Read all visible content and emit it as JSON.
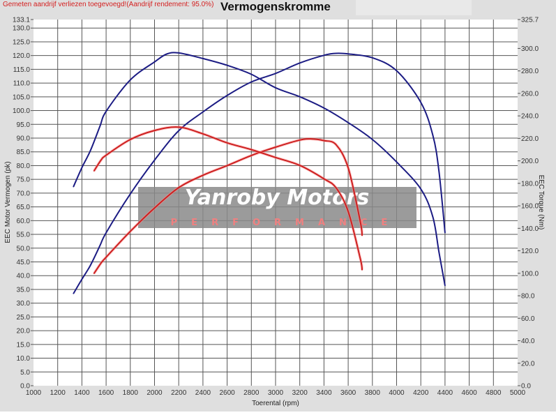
{
  "note": "Gemeten aandrijf verliezen toegevoegd!(Aandrijf rendement: 95.0%)",
  "title": "Vermogenskromme",
  "watermark": {
    "line1": "Yanroby Motors",
    "line2": "PERFORMANCE"
  },
  "colors": {
    "power_curves": "#1c1c84",
    "torque_curves": "#cc2020",
    "note": "#d42020",
    "grid": "#444444"
  },
  "chart_data": {
    "type": "line",
    "title": "Vermogenskromme",
    "xlabel": "Toerental (rpm)",
    "ylabel": "EEC Motor Vermogen (pk)",
    "y2label": "EEC Torque (Nm)",
    "xlim": [
      1000,
      5000
    ],
    "ylim": [
      0,
      133.1
    ],
    "y2lim": [
      0,
      325.7
    ],
    "grid": true,
    "xticks": [
      "1000",
      "1200",
      "1400",
      "1600",
      "1800",
      "2000",
      "2200",
      "2400",
      "2600",
      "2800",
      "3000",
      "3200",
      "3400",
      "3600",
      "3800",
      "4000",
      "4200",
      "4400",
      "4600",
      "4800",
      "5000"
    ],
    "yticks": [
      "0.0",
      "5.0",
      "10.0",
      "15.0",
      "20.0",
      "25.0",
      "30.0",
      "35.0",
      "40.0",
      "45.0",
      "50.0",
      "55.0",
      "60.0",
      "65.0",
      "70.0",
      "75.0",
      "80.0",
      "85.0",
      "90.0",
      "95.0",
      "100.0",
      "105.0",
      "110.0",
      "115.0",
      "120.0",
      "125.0",
      "130.0",
      "133.1"
    ],
    "y2ticks": [
      "0.0",
      "20.0",
      "40.0",
      "60.0",
      "80.0",
      "100.0",
      "120.0",
      "140.0",
      "160.0",
      "180.0",
      "200.0",
      "220.0",
      "240.0",
      "260.0",
      "280.0",
      "300.0",
      "325.7"
    ],
    "series": [
      {
        "axis": "left",
        "color": "#1c1c84",
        "x": [
          1330,
          1400,
          1470,
          1550,
          1600,
          1800,
          2000,
          2200,
          2400,
          2600,
          2800,
          3000,
          3200,
          3400,
          3500,
          3600,
          3800,
          4000,
          4200,
          4300,
          4350,
          4400
        ],
        "y": [
          33.5,
          38.7,
          43.7,
          51,
          55.6,
          69.7,
          82,
          92.7,
          99.5,
          105.5,
          110.4,
          113.5,
          117.3,
          120.1,
          120.8,
          120.6,
          119.2,
          114.5,
          103,
          91,
          78,
          55.6
        ]
      },
      {
        "axis": "right",
        "color": "#1c1c84",
        "x": [
          1330,
          1400,
          1470,
          1550,
          1600,
          1800,
          2000,
          2100,
          2200,
          2400,
          2600,
          2800,
          3000,
          3200,
          3400,
          3600,
          3800,
          4000,
          4200,
          4300,
          4350,
          4400
        ],
        "y": [
          177,
          194,
          209,
          231,
          244,
          272,
          288,
          295,
          296,
          291,
          285,
          277,
          265,
          257,
          247,
          234,
          219,
          199,
          175,
          150,
          119,
          89
        ]
      },
      {
        "axis": "left",
        "color": "#cc2020",
        "x": [
          1500,
          1560,
          1600,
          1800,
          2000,
          2200,
          2400,
          2600,
          2800,
          3000,
          3200,
          3300,
          3400,
          3500,
          3600,
          3700,
          3715
        ],
        "y": [
          40.8,
          44.7,
          46.7,
          56.1,
          64.6,
          72,
          76.5,
          80,
          83.7,
          86.7,
          89.3,
          89.7,
          89.1,
          87.6,
          79.2,
          59.6,
          54.6
        ]
      },
      {
        "axis": "right",
        "color": "#cc2020",
        "x": [
          1500,
          1560,
          1600,
          1800,
          2000,
          2200,
          2400,
          2600,
          2800,
          3000,
          3200,
          3400,
          3500,
          3600,
          3700,
          3715
        ],
        "y": [
          191,
          201,
          205,
          219,
          227,
          230,
          224,
          216,
          210,
          203,
          196,
          184,
          176,
          155,
          113,
          103
        ]
      }
    ]
  }
}
